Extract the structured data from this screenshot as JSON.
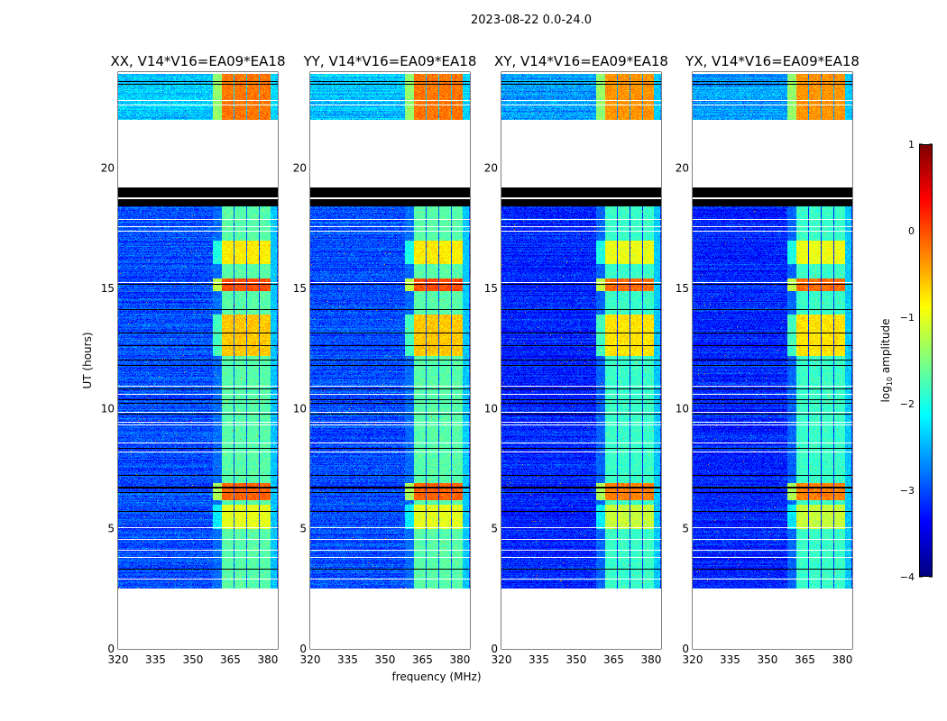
{
  "figure_title": "2023-08-22 0.0-24.0",
  "chart_data": [
    {
      "type": "heatmap",
      "title": "XX, V14*V16=EA09*EA18",
      "xlabel": "",
      "ylabel": "UT (hours)",
      "xlim": [
        320,
        384
      ],
      "ylim": [
        0,
        24
      ],
      "xticks": [
        "320",
        "335",
        "350",
        "365",
        "380"
      ],
      "yticks": [
        "0",
        "5",
        "10",
        "15",
        "20"
      ],
      "background_log_amp": -3.0
    },
    {
      "type": "heatmap",
      "title": "YY, V14*V16=EA09*EA18",
      "xlabel": "frequency (MHz)",
      "ylabel": "",
      "xlim": [
        320,
        384
      ],
      "ylim": [
        0,
        24
      ],
      "xticks": [
        "320",
        "335",
        "350",
        "365",
        "380"
      ],
      "yticks": [
        "0",
        "5",
        "10",
        "15",
        "20"
      ],
      "background_log_amp": -3.0
    },
    {
      "type": "heatmap",
      "title": "XY, V14*V16=EA09*EA18",
      "xlabel": "",
      "ylabel": "",
      "xlim": [
        320,
        384
      ],
      "ylim": [
        0,
        24
      ],
      "xticks": [
        "320",
        "335",
        "350",
        "365",
        "380"
      ],
      "yticks": [
        "0",
        "5",
        "10",
        "15",
        "20"
      ],
      "background_log_amp": -3.2
    },
    {
      "type": "heatmap",
      "title": "YX, V14*V16=EA09*EA18",
      "xlabel": "",
      "ylabel": "",
      "xlim": [
        320,
        384
      ],
      "ylim": [
        0,
        24
      ],
      "xticks": [
        "320",
        "335",
        "350",
        "365",
        "380"
      ],
      "yticks": [
        "0",
        "5",
        "10",
        "15",
        "20"
      ],
      "background_log_amp": -3.2
    }
  ],
  "shared_structure": {
    "observed_time_ranges_hours": [
      [
        2.5,
        19.2
      ],
      [
        22.0,
        24.0
      ]
    ],
    "flagged_time_range_hours": [
      18.4,
      19.2
    ],
    "rfi_subbands_mhz": [
      [
        361.5,
        366.3
      ],
      [
        366.8,
        371.3
      ],
      [
        371.8,
        376.3
      ],
      [
        376.8,
        381.0
      ]
    ],
    "rfi_episodes": [
      {
        "t": [
          22.0,
          24.0
        ],
        "log_amp": -0.2
      },
      {
        "t": [
          16.0,
          17.0
        ],
        "log_amp": -0.8
      },
      {
        "t": [
          14.9,
          15.4
        ],
        "log_amp": 0.0
      },
      {
        "t": [
          12.2,
          13.9
        ],
        "log_amp": -0.6
      },
      {
        "t": [
          6.2,
          6.9
        ],
        "log_amp": -0.1
      },
      {
        "t": [
          5.0,
          6.0
        ],
        "log_amp": -1.0
      },
      {
        "t": [
          2.5,
          19.2
        ],
        "log_amp": -1.7
      }
    ]
  },
  "colorbar": {
    "label_main": "log",
    "label_sub": "10",
    "label_rest": " amplitude",
    "range": [
      -4,
      1
    ],
    "ticks": [
      "1",
      "0",
      "−1",
      "−2",
      "−3",
      "−4"
    ],
    "tick_values": [
      1,
      0,
      -1,
      -2,
      -3,
      -4
    ],
    "colormap": "jet"
  }
}
